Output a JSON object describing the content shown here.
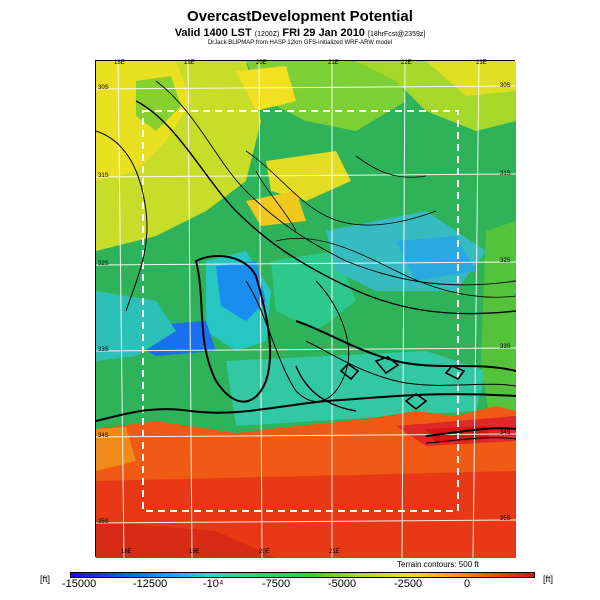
{
  "title": "OvercastDevelopment Potential",
  "subtitle_main": "Valid 1400 LST",
  "subtitle_small1": "(1200Z)",
  "subtitle_date": "FRI 29 Jan 2010",
  "subtitle_small2": "[18hrFcst@2359z]",
  "credit": "DrJack BLIPMAP from HASP 12km GFS-initialized WRF-ARW model",
  "top_lon_labels": [
    "18E",
    "19E",
    "20E",
    "21E",
    "22E",
    "23E"
  ],
  "bottom_lon_labels": [
    "18E",
    "19E",
    "20E",
    "21E"
  ],
  "left_lat_labels": [
    "30S",
    "31S",
    "32S",
    "33S",
    "34S",
    "35S"
  ],
  "right_lat_labels": [
    "30S",
    "31S",
    "32S",
    "33S",
    "34S",
    "35S"
  ],
  "terrain_note": "Terrain contours: 500 ft",
  "colorbar": {
    "unit_left": "[ft]",
    "unit_right": "[ft]",
    "ticks": [
      "-15000",
      "-12500",
      "-10⁴",
      "-7500",
      "-5000",
      "-2500",
      "0"
    ]
  }
}
